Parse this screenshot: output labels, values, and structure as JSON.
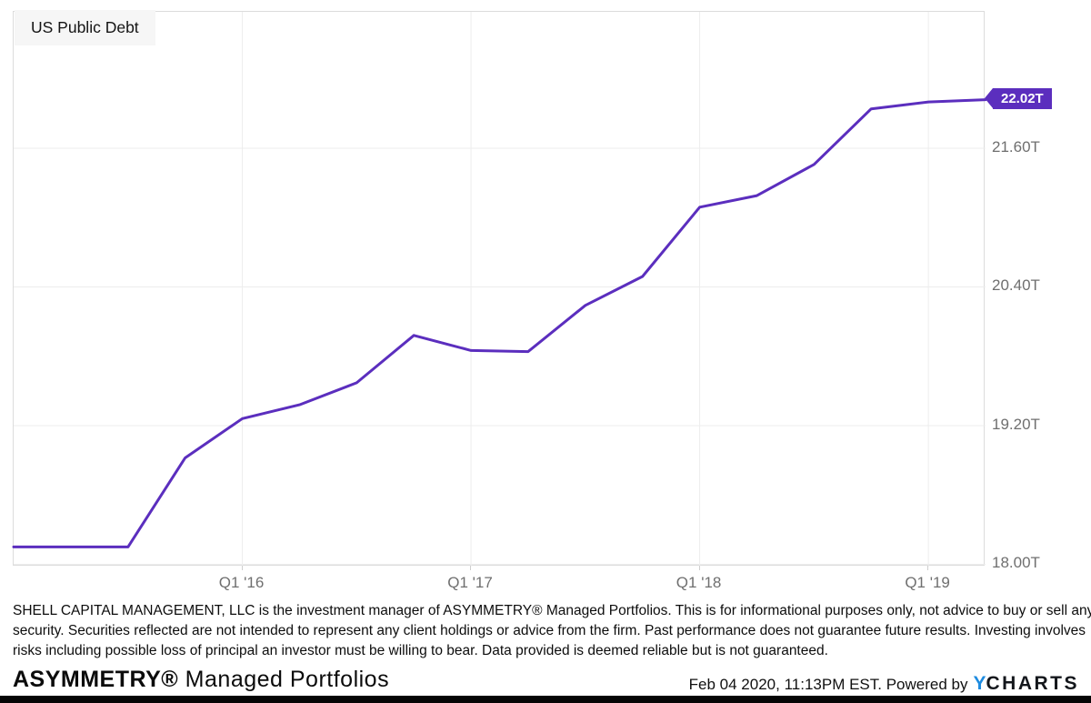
{
  "title": "US Public Debt",
  "chart_data": {
    "type": "line",
    "title": "US Public Debt",
    "unit": "trillions USD",
    "x": [
      "Q1 '15",
      "Q2 '15",
      "Q3 '15",
      "Q4 '15",
      "Q1 '16",
      "Q2 '16",
      "Q3 '16",
      "Q4 '16",
      "Q1 '17",
      "Q2 '17",
      "Q3 '17",
      "Q4 '17",
      "Q1 '18",
      "Q2 '18",
      "Q3 '18",
      "Q4 '18",
      "Q1 '19",
      "Q2 '19"
    ],
    "values": [
      18.15,
      18.15,
      18.15,
      18.92,
      19.26,
      19.38,
      19.57,
      19.98,
      19.85,
      19.84,
      20.24,
      20.49,
      21.09,
      21.19,
      21.46,
      21.94,
      22.0,
      22.02
    ],
    "last_value_label": "22.02T",
    "y_ticks": [
      {
        "value": 21.6,
        "label": "21.60T"
      },
      {
        "value": 20.4,
        "label": "20.40T"
      },
      {
        "value": 19.2,
        "label": "19.20T"
      },
      {
        "value": 18.0,
        "label": "18.00T"
      }
    ],
    "x_ticks": [
      {
        "index": 4,
        "label": "Q1 '16"
      },
      {
        "index": 8,
        "label": "Q1 '17"
      },
      {
        "index": 12,
        "label": "Q1 '18"
      },
      {
        "index": 16,
        "label": "Q1 '19"
      }
    ],
    "ylim": [
      17.98,
      22.78
    ],
    "line_color": "#5B2EBE",
    "grid_color": "#ededed",
    "grid": true,
    "legend": "none"
  },
  "disclaimer": {
    "lines": [
      "SHELL CAPITAL MANAGEMENT, LLC is the investment manager of ASYMMETRY® Managed Portfolios. This is for informational purposes only, not advice to buy or sell any",
      "security. Securities reflected are not intended to represent any client holdings or advice from the firm. Past performance does not guarantee future results. Investing involves",
      "risks including possible loss of principal an investor must be willing to bear. Data provided is deemed reliable but is not guaranteed."
    ]
  },
  "footer": {
    "brand_bold": "ASYMMETRY®",
    "brand_rest": " Managed Portfolios",
    "timestamp": "Feb 04 2020, 11:13PM EST. Powered by",
    "ycharts_y": "Y",
    "ycharts_rest": "CHARTS"
  }
}
